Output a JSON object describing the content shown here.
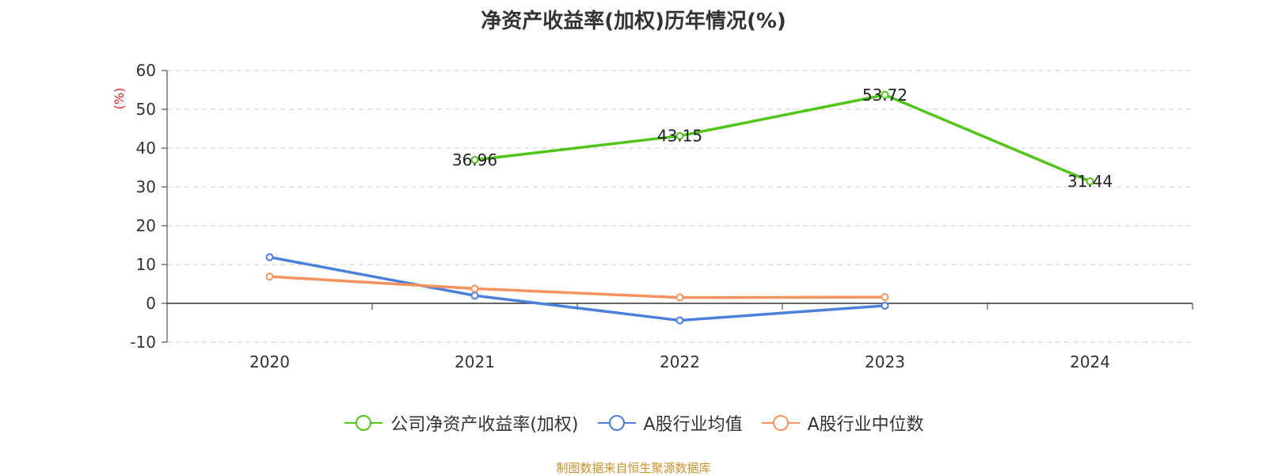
{
  "chart_data": {
    "type": "line",
    "title": "净资产收益率(加权)历年情况(%)",
    "ylabel": "(%)",
    "categories": [
      "2020",
      "2021",
      "2022",
      "2023",
      "2024"
    ],
    "ylim": [
      -10,
      60
    ],
    "yticks": [
      "-10",
      "0",
      "10",
      "20",
      "30",
      "40",
      "50",
      "60"
    ],
    "grid": true,
    "legend_position": "bottom",
    "series": [
      {
        "name": "公司净资产收益率(加权)",
        "color": "#52c41a",
        "values": [
          null,
          36.96,
          43.15,
          53.72,
          31.44
        ],
        "labels": [
          "",
          "36.96",
          "43.15",
          "53.72",
          "31.44"
        ],
        "show_labels": true
      },
      {
        "name": "A股行业均值",
        "color": "#4a7fdc",
        "values": [
          11.9,
          2.0,
          -4.4,
          -0.6,
          null
        ],
        "show_labels": false
      },
      {
        "name": "A股行业中位数",
        "color": "#f5925e",
        "values": [
          6.9,
          3.8,
          1.5,
          1.6,
          null
        ],
        "show_labels": false
      }
    ]
  },
  "source_note": "制图数据来自恒生聚源数据库"
}
